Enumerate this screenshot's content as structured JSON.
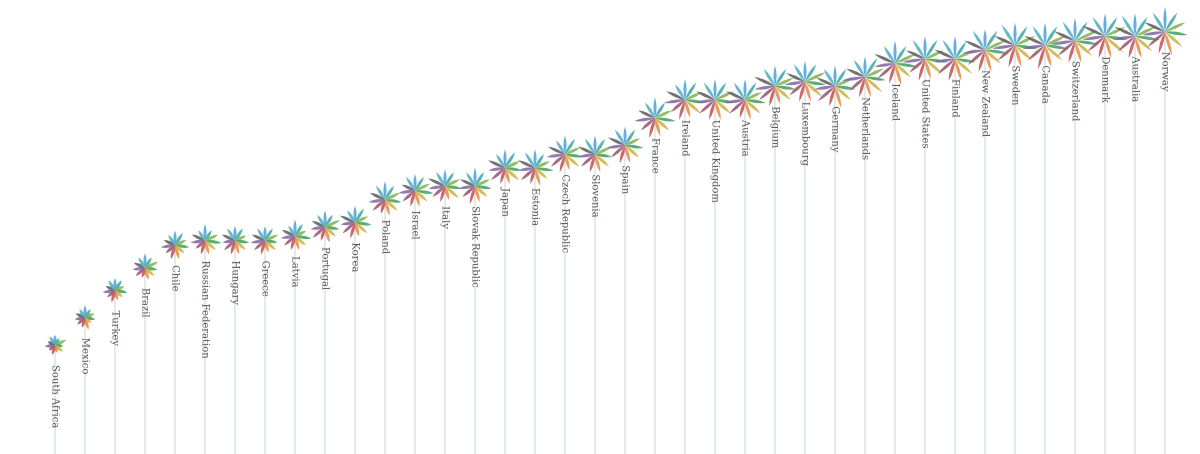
{
  "chart_data": {
    "type": "flower",
    "categories": [
      "South Africa",
      "Mexico",
      "Turkey",
      "Brazil",
      "Chile",
      "Russian Federation",
      "Hungary",
      "Greece",
      "Latvia",
      "Portugal",
      "Korea",
      "Poland",
      "Israel",
      "Italy",
      "Slovak Republic",
      "Japan",
      "Estonia",
      "Czech Republic",
      "Slovenia",
      "Spain",
      "France",
      "Ireland",
      "United Kingdom",
      "Austria",
      "Belgium",
      "Luxembourg",
      "Germany",
      "Netherlands",
      "Iceland",
      "United States",
      "Finland",
      "New Zealand",
      "Sweden",
      "Canada",
      "Switzerland",
      "Denmark",
      "Australia",
      "Norway"
    ],
    "values": [
      2.4,
      3.0,
      3.6,
      4.1,
      4.6,
      4.7,
      4.7,
      4.7,
      4.8,
      5.0,
      5.1,
      5.6,
      5.8,
      5.9,
      5.9,
      6.3,
      6.3,
      6.6,
      6.6,
      6.8,
      7.4,
      7.8,
      7.8,
      7.8,
      8.1,
      8.2,
      8.1,
      8.3,
      8.6,
      8.7,
      8.7,
      8.9,
      9.0,
      9.0,
      9.1,
      9.2,
      9.2,
      9.3
    ],
    "ylim": [
      0,
      10
    ],
    "stem_color": "#c9d3da",
    "series": [
      {
        "color": "#4f9fd6",
        "values": [
          3,
          4,
          4,
          5,
          5,
          6,
          5,
          5,
          6,
          6,
          6,
          7,
          6,
          6,
          7,
          7,
          7,
          7,
          7,
          7,
          8,
          8,
          8,
          8,
          8,
          8,
          8,
          8,
          9,
          9,
          9,
          8,
          9,
          9,
          9,
          9,
          9,
          10
        ]
      },
      {
        "color": "#3aa6a5",
        "values": [
          2,
          3,
          4,
          4,
          5,
          4,
          5,
          5,
          5,
          5,
          6,
          6,
          6,
          6,
          6,
          7,
          6,
          7,
          7,
          7,
          7,
          8,
          8,
          8,
          8,
          8,
          8,
          9,
          8,
          9,
          8,
          9,
          9,
          9,
          9,
          9,
          9,
          9
        ]
      },
      {
        "color": "#7fb24b",
        "values": [
          4,
          3,
          3,
          5,
          4,
          5,
          4,
          5,
          4,
          6,
          5,
          6,
          6,
          6,
          6,
          6,
          6,
          6,
          7,
          6,
          7,
          7,
          8,
          7,
          8,
          9,
          8,
          8,
          9,
          8,
          9,
          9,
          9,
          9,
          10,
          9,
          9,
          9
        ]
      },
      {
        "color": "#3e9e5e",
        "values": [
          2,
          3,
          4,
          4,
          5,
          6,
          5,
          4,
          6,
          5,
          6,
          6,
          7,
          6,
          6,
          6,
          7,
          7,
          6,
          7,
          8,
          8,
          7,
          8,
          8,
          8,
          8,
          8,
          9,
          9,
          8,
          9,
          9,
          9,
          9,
          9,
          10,
          9
        ]
      },
      {
        "color": "#c9b23e",
        "values": [
          3,
          2,
          3,
          4,
          4,
          5,
          5,
          5,
          5,
          5,
          6,
          6,
          6,
          7,
          6,
          7,
          6,
          7,
          7,
          7,
          7,
          8,
          8,
          8,
          8,
          9,
          8,
          9,
          8,
          9,
          9,
          8,
          9,
          9,
          9,
          10,
          9,
          9
        ]
      },
      {
        "color": "#e58a3c",
        "values": [
          2,
          4,
          3,
          4,
          5,
          5,
          5,
          4,
          5,
          6,
          5,
          6,
          6,
          5,
          6,
          6,
          7,
          6,
          7,
          7,
          7,
          7,
          8,
          8,
          7,
          8,
          9,
          8,
          9,
          8,
          9,
          9,
          9,
          9,
          9,
          9,
          9,
          10
        ]
      },
      {
        "color": "#c0504d",
        "values": [
          3,
          3,
          4,
          3,
          5,
          5,
          5,
          5,
          5,
          5,
          6,
          5,
          6,
          6,
          7,
          6,
          6,
          7,
          7,
          7,
          8,
          8,
          8,
          7,
          8,
          8,
          8,
          8,
          8,
          9,
          9,
          9,
          9,
          10,
          9,
          9,
          9,
          9
        ]
      },
      {
        "color": "#9c4f6b",
        "values": [
          2,
          3,
          3,
          4,
          4,
          4,
          5,
          5,
          5,
          6,
          6,
          6,
          6,
          6,
          6,
          7,
          7,
          7,
          7,
          7,
          7,
          7,
          8,
          8,
          8,
          8,
          9,
          8,
          9,
          8,
          9,
          9,
          9,
          9,
          9,
          9,
          9,
          9
        ]
      },
      {
        "color": "#8064a2",
        "values": [
          3,
          3,
          4,
          4,
          5,
          5,
          4,
          5,
          5,
          5,
          5,
          6,
          6,
          6,
          6,
          6,
          6,
          7,
          6,
          7,
          8,
          8,
          7,
          8,
          8,
          8,
          8,
          9,
          8,
          9,
          8,
          9,
          9,
          9,
          10,
          9,
          9,
          9
        ]
      },
      {
        "color": "#5a5a5a",
        "values": [
          2,
          3,
          3,
          4,
          4,
          5,
          5,
          5,
          5,
          5,
          6,
          6,
          5,
          7,
          6,
          7,
          7,
          7,
          7,
          7,
          7,
          8,
          8,
          8,
          9,
          8,
          8,
          8,
          9,
          8,
          9,
          9,
          9,
          9,
          9,
          10,
          9,
          9
        ]
      },
      {
        "color": "#4bacc6",
        "values": [
          3,
          3,
          4,
          4,
          4,
          4,
          5,
          5,
          4,
          5,
          5,
          6,
          6,
          6,
          6,
          6,
          7,
          6,
          7,
          7,
          7,
          7,
          8,
          8,
          8,
          8,
          8,
          8,
          8,
          9,
          9,
          9,
          10,
          9,
          9,
          9,
          10,
          9
        ]
      }
    ]
  }
}
